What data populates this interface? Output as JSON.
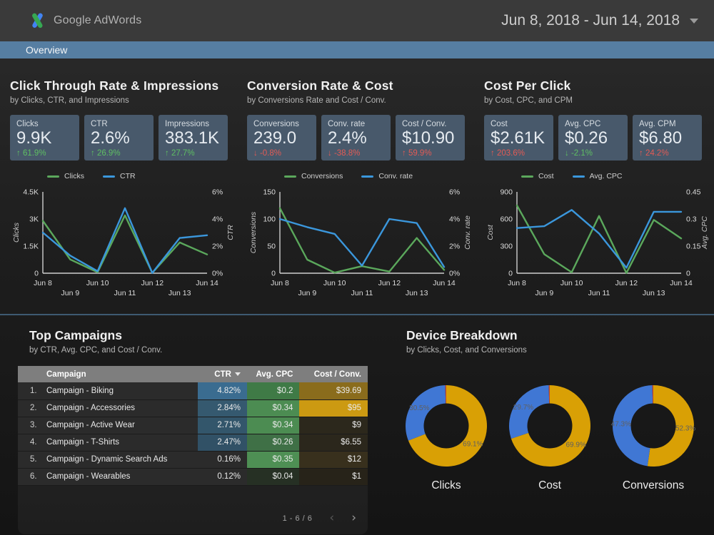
{
  "header": {
    "brand_google": "Google",
    "brand_product": "AdWords",
    "date_range": "Jun 8, 2018 - Jun 14, 2018"
  },
  "nav": {
    "tab": "Overview"
  },
  "colors": {
    "accent_bar": "#567ea2",
    "card_bg": "#48596b",
    "good": "#5fbf63",
    "bad": "#e35b55",
    "line_green": "#5ba85c",
    "line_blue": "#3b97dc",
    "donut_gold": "#d9a005",
    "donut_blue": "#4077d4",
    "donut_red": "#c1452f"
  },
  "sections": [
    {
      "title": "Click Through Rate & Impressions",
      "subtitle": "by Clicks, CTR, and Impressions",
      "scorecards": [
        {
          "label": "Clicks",
          "value": "9.9K",
          "arrow": "up",
          "delta": "61.9%",
          "tone": "good"
        },
        {
          "label": "CTR",
          "value": "2.6%",
          "arrow": "up",
          "delta": "26.9%",
          "tone": "good"
        },
        {
          "label": "Impressions",
          "value": "383.1K",
          "arrow": "up",
          "delta": "27.7%",
          "tone": "good"
        }
      ]
    },
    {
      "title": "Conversion Rate & Cost",
      "subtitle": "by Conversions Rate and Cost / Conv.",
      "scorecards": [
        {
          "label": "Conversions",
          "value": "239.0",
          "arrow": "down",
          "delta": "-0.8%",
          "tone": "bad"
        },
        {
          "label": "Conv. rate",
          "value": "2.4%",
          "arrow": "down",
          "delta": "-38.8%",
          "tone": "bad"
        },
        {
          "label": "Cost / Conv.",
          "value": "$10.90",
          "arrow": "up",
          "delta": "59.9%",
          "tone": "bad"
        }
      ]
    },
    {
      "title": "Cost Per Click",
      "subtitle": "by Cost, CPC, and CPM",
      "scorecards": [
        {
          "label": "Cost",
          "value": "$2.61K",
          "arrow": "up",
          "delta": "203.6%",
          "tone": "bad"
        },
        {
          "label": "Avg. CPC",
          "value": "$0.26",
          "arrow": "down",
          "delta": "-2.1%",
          "tone": "good"
        },
        {
          "label": "Avg. CPM",
          "value": "$6.80",
          "arrow": "up",
          "delta": "24.2%",
          "tone": "bad"
        }
      ]
    }
  ],
  "chart_data": [
    {
      "type": "line",
      "x": [
        "Jun 8",
        "Jun 9",
        "Jun 10",
        "Jun 11",
        "Jun 12",
        "Jun 13",
        "Jun 14"
      ],
      "series": [
        {
          "name": "Clicks",
          "axis": "left",
          "color": "#5ba85c",
          "values": [
            2900,
            760,
            50,
            3200,
            20,
            1700,
            1040
          ]
        },
        {
          "name": "CTR",
          "axis": "right",
          "color": "#3b97dc",
          "values": [
            3.0,
            1.3,
            0.15,
            4.8,
            0.02,
            2.6,
            2.8
          ]
        }
      ],
      "left_axis": {
        "label": "Clicks",
        "min": 0,
        "max": 4500,
        "ticks": [
          "0",
          "1.5K",
          "3K",
          "4.5K"
        ]
      },
      "right_axis": {
        "label": "CTR",
        "min": 0,
        "max": 6,
        "ticks": [
          "0%",
          "2%",
          "4%",
          "6%"
        ]
      },
      "legend_position": "top",
      "grid": false
    },
    {
      "type": "line",
      "x": [
        "Jun 8",
        "Jun 9",
        "Jun 10",
        "Jun 11",
        "Jun 12",
        "Jun 13",
        "Jun 14"
      ],
      "series": [
        {
          "name": "Conversions",
          "axis": "left",
          "color": "#5ba85c",
          "values": [
            120,
            25,
            1,
            13,
            3,
            65,
            6
          ]
        },
        {
          "name": "Conv. rate",
          "axis": "right",
          "color": "#3b97dc",
          "values": [
            4.0,
            3.4,
            2.9,
            0.56,
            4.0,
            3.7,
            0.46
          ]
        }
      ],
      "left_axis": {
        "label": "Conversions",
        "min": 0,
        "max": 150,
        "ticks": [
          "0",
          "50",
          "100",
          "150"
        ]
      },
      "right_axis": {
        "label": "Conv. rate",
        "min": 0,
        "max": 6,
        "ticks": [
          "0%",
          "2%",
          "4%",
          "6%"
        ]
      },
      "legend_position": "top",
      "grid": false
    },
    {
      "type": "line",
      "x": [
        "Jun 8",
        "Jun 9",
        "Jun 10",
        "Jun 11",
        "Jun 12",
        "Jun 13",
        "Jun 14"
      ],
      "series": [
        {
          "name": "Cost",
          "axis": "left",
          "color": "#5ba85c",
          "values": [
            750,
            210,
            10,
            633,
            2,
            590,
            385
          ]
        },
        {
          "name": "Avg. CPC",
          "axis": "right",
          "color": "#3b97dc",
          "values": [
            0.25,
            0.26,
            0.35,
            0.22,
            0.03,
            0.34,
            0.34
          ]
        }
      ],
      "left_axis": {
        "label": "Cost",
        "min": 0,
        "max": 900,
        "ticks": [
          "0",
          "300",
          "600",
          "900"
        ]
      },
      "right_axis": {
        "label": "Avg. CPC",
        "min": 0,
        "max": 0.45,
        "ticks": [
          "0",
          "0.15",
          "0.3",
          "0.45"
        ]
      },
      "legend_position": "top",
      "grid": false
    },
    {
      "type": "pie",
      "title": "Clicks",
      "slices": [
        {
          "value": 69.1,
          "label": "69.1%",
          "color": "#d9a005"
        },
        {
          "value": 30.5,
          "label": "30.5%",
          "color": "#4077d4"
        },
        {
          "value": 0.4,
          "label": "",
          "color": "#c1452f"
        }
      ]
    },
    {
      "type": "pie",
      "title": "Cost",
      "slices": [
        {
          "value": 69.9,
          "label": "69.9%",
          "color": "#d9a005"
        },
        {
          "value": 29.7,
          "label": "29.7%",
          "color": "#4077d4"
        },
        {
          "value": 0.4,
          "label": "",
          "color": "#c1452f"
        }
      ]
    },
    {
      "type": "pie",
      "title": "Conversions",
      "slices": [
        {
          "value": 52.3,
          "label": "52.3%",
          "color": "#d9a005"
        },
        {
          "value": 47.3,
          "label": "47.3%",
          "color": "#4077d4"
        },
        {
          "value": 0.4,
          "label": "",
          "color": "#c1452f"
        }
      ]
    }
  ],
  "campaigns_panel": {
    "title": "Top Campaigns",
    "subtitle": "by CTR, Avg. CPC, and Cost / Conv.",
    "columns": [
      "Campaign",
      "CTR",
      "Avg. CPC",
      "Cost / Conv."
    ],
    "sorted_by": "CTR",
    "rows": [
      {
        "index": "1.",
        "campaign": "Campaign - Biking",
        "ctr": "4.82%",
        "cpc": "$0.2",
        "cost_conv": "$39.69",
        "ctr_bg": "#3a6c90",
        "cpc_bg": "#3f7a46",
        "cost_bg": "#8a6c1c"
      },
      {
        "index": "2.",
        "campaign": "Campaign - Accessories",
        "ctr": "2.84%",
        "cpc": "$0.34",
        "cost_conv": "$95",
        "ctr_bg": "#35596f",
        "cpc_bg": "#4c8c52",
        "cost_bg": "#cc9a12"
      },
      {
        "index": "3.",
        "campaign": "Campaign - Active Wear",
        "ctr": "2.71%",
        "cpc": "$0.34",
        "cost_conv": "$9",
        "ctr_bg": "#33566b",
        "cpc_bg": "#4c8c52",
        "cost_bg": "#2c281c"
      },
      {
        "index": "4.",
        "campaign": "Campaign - T-Shirts",
        "ctr": "2.47%",
        "cpc": "$0.26",
        "cost_conv": "$6.55",
        "ctr_bg": "#315166",
        "cpc_bg": "#3f7046",
        "cost_bg": "#2b271c"
      },
      {
        "index": "5.",
        "campaign": "Campaign - Dynamic Search Ads",
        "ctr": "0.16%",
        "cpc": "$0.35",
        "cost_conv": "$12",
        "ctr_bg": "#2b2b2b",
        "cpc_bg": "#4e8f54",
        "cost_bg": "#38301d"
      },
      {
        "index": "6.",
        "campaign": "Campaign - Wearables",
        "ctr": "0.12%",
        "cpc": "$0.04",
        "cost_conv": "$1",
        "ctr_bg": "#2b2b2b",
        "cpc_bg": "#263024",
        "cost_bg": "#272319"
      }
    ],
    "pagination": "1 - 6 / 6"
  },
  "devices_panel": {
    "title": "Device Breakdown",
    "subtitle": "by Clicks, Cost, and Conversions",
    "donut_labels": [
      "Clicks",
      "Cost",
      "Conversions"
    ]
  }
}
